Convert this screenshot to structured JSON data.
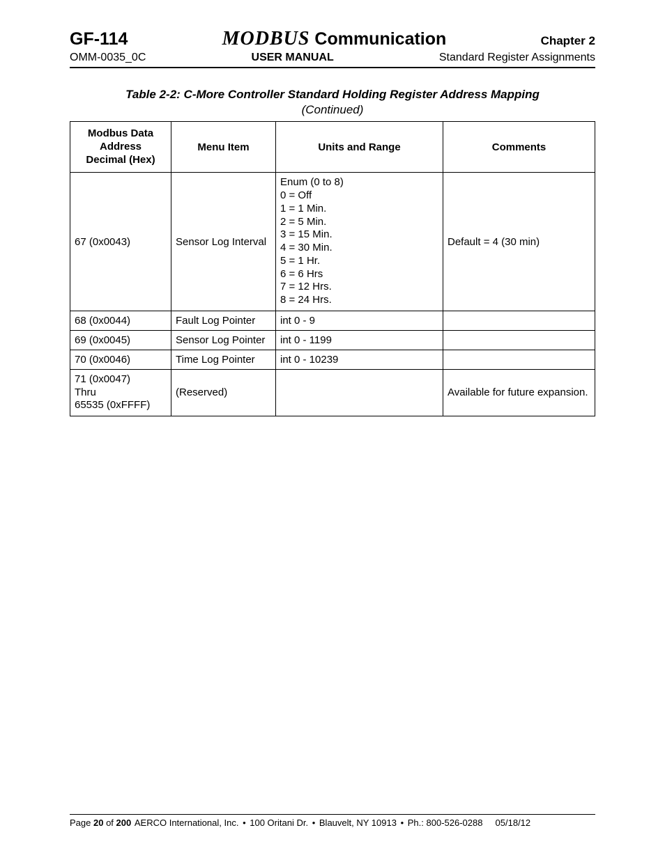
{
  "header": {
    "gf": "GF-114",
    "modbus": "MODBUS",
    "communication": " Communication",
    "chapter": "Chapter 2",
    "docnum": "OMM-0035_0C",
    "manual": "USER MANUAL",
    "section": "Standard Register Assignments"
  },
  "table": {
    "caption": "Table 2-2:  C-More Controller Standard Holding Register Address Mapping",
    "caption_sub": "(Continued)",
    "columns": [
      "Modbus Data\nAddress\nDecimal (Hex)",
      "Menu Item",
      "Units and Range",
      "Comments"
    ],
    "rows": [
      {
        "address": "67 (0x0043)",
        "menu": "Sensor Log Interval",
        "units": "Enum  (0 to 8)\n0 = Off\n1 = 1 Min.\n2 = 5 Min.\n3 = 15 Min.\n4 = 30 Min.\n5 = 1 Hr.\n6 = 6 Hrs\n7 = 12 Hrs.\n8 = 24 Hrs.",
        "comments": "Default = 4 (30 min)"
      },
      {
        "address": "68 (0x0044)",
        "menu": "Fault Log Pointer",
        "units": "int 0 - 9",
        "comments": ""
      },
      {
        "address": "69 (0x0045)",
        "menu": "Sensor Log Pointer",
        "units": "int 0 - 1199",
        "comments": ""
      },
      {
        "address": "70 (0x0046)",
        "menu": "Time Log Pointer",
        "units": "int 0 - 10239",
        "comments": ""
      },
      {
        "address": "71 (0x0047)\nThru\n65535 (0xFFFF)",
        "menu": "(Reserved)",
        "units": "",
        "comments": "Available for future expansion."
      }
    ]
  },
  "footer": {
    "page_prefix": "Page ",
    "page_num": "20",
    "page_of": " of ",
    "page_total": "200",
    "company": "AERCO International, Inc.",
    "addr1": "100 Oritani Dr.",
    "addr2": "Blauvelt, NY 10913",
    "phone": "Ph.: 800-526-0288",
    "date": "05/18/12",
    "bullet": "•"
  }
}
